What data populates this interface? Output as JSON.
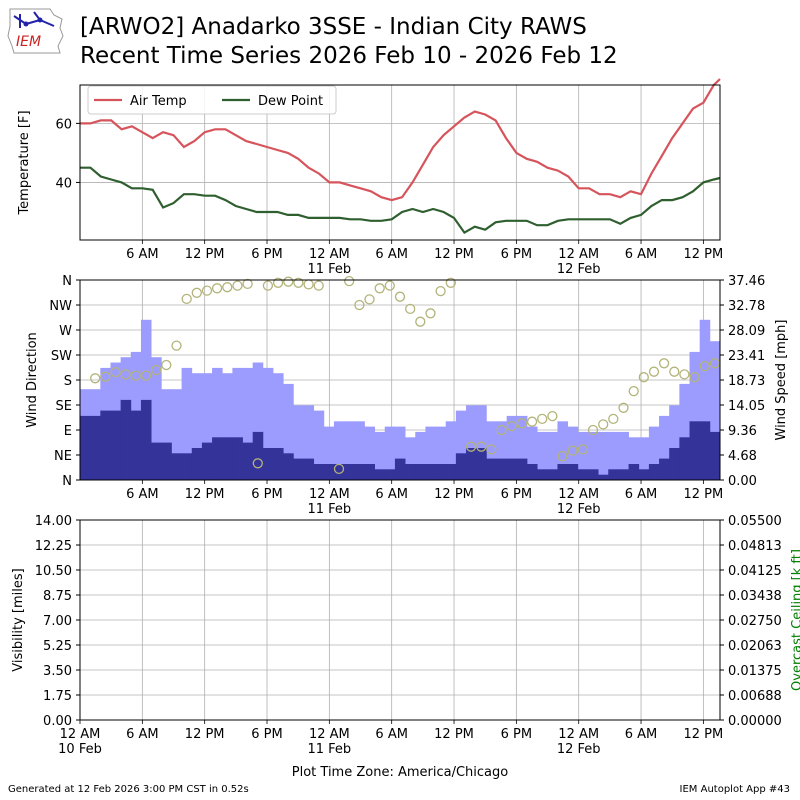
{
  "header": {
    "logo_text": "IEM",
    "title_line1": "[ARWO2] Anadarko 3SSE - Indian City RAWS",
    "title_line2": "Recent Time Series 2026 Feb 10 - 2026 Feb 12"
  },
  "footer": {
    "generated": "Generated at 12 Feb 2026 3:00 PM CST in 0.52s",
    "app": "IEM Autoplot App #43"
  },
  "colors": {
    "air_temp": "#d6545b",
    "dew_point": "#2f5f2f",
    "gust_bar": "#9c9cff",
    "speed_bar": "#333399",
    "direction_marker": "#b3b37a",
    "ceiling_label": "#008000"
  },
  "chart_data": [
    {
      "type": "line",
      "ylabel": "Temperature [F]",
      "yticks": [
        40,
        60
      ],
      "ylim": [
        20.5,
        73
      ],
      "xlim": [
        0,
        61.6
      ],
      "x_ticks": [
        {
          "x": 6,
          "label": "6 AM"
        },
        {
          "x": 12,
          "label": "12 PM"
        },
        {
          "x": 18,
          "label": "6 PM"
        },
        {
          "x": 24,
          "label": "12 AM",
          "sub": "11 Feb"
        },
        {
          "x": 30,
          "label": "6 AM"
        },
        {
          "x": 36,
          "label": "12 PM"
        },
        {
          "x": 42,
          "label": "6 PM"
        },
        {
          "x": 48,
          "label": "12 AM",
          "sub": "12 Feb"
        },
        {
          "x": 54,
          "label": "6 AM"
        },
        {
          "x": 60,
          "label": "12 PM"
        }
      ],
      "legend": [
        "Air Temp",
        "Dew Point"
      ],
      "legend_position": "top-left",
      "grid": true,
      "series": [
        {
          "name": "Air Temp",
          "points": [
            [
              0,
              60
            ],
            [
              1,
              60
            ],
            [
              2,
              61
            ],
            [
              3,
              61
            ],
            [
              4,
              58
            ],
            [
              5,
              59
            ],
            [
              6,
              57
            ],
            [
              7,
              55
            ],
            [
              8,
              57
            ],
            [
              9,
              56
            ],
            [
              10,
              52
            ],
            [
              11,
              54
            ],
            [
              12,
              57
            ],
            [
              13,
              58
            ],
            [
              14,
              58
            ],
            [
              15,
              56
            ],
            [
              16,
              54
            ],
            [
              17,
              53
            ],
            [
              18,
              52
            ],
            [
              19,
              51
            ],
            [
              20,
              50
            ],
            [
              21,
              48
            ],
            [
              22,
              45
            ],
            [
              23,
              43
            ],
            [
              24,
              40
            ],
            [
              25,
              40
            ],
            [
              26,
              39
            ],
            [
              27,
              38
            ],
            [
              28,
              37
            ],
            [
              29,
              35
            ],
            [
              30,
              34
            ],
            [
              31,
              35
            ],
            [
              32,
              40
            ],
            [
              33,
              46
            ],
            [
              34,
              52
            ],
            [
              35,
              56
            ],
            [
              36,
              59
            ],
            [
              37,
              62
            ],
            [
              38,
              64
            ],
            [
              39,
              63
            ],
            [
              40,
              61
            ],
            [
              41,
              55
            ],
            [
              42,
              50
            ],
            [
              43,
              48
            ],
            [
              44,
              47
            ],
            [
              45,
              45
            ],
            [
              46,
              44
            ],
            [
              47,
              42
            ],
            [
              48,
              38
            ],
            [
              49,
              38
            ],
            [
              50,
              36
            ],
            [
              51,
              36
            ],
            [
              52,
              35
            ],
            [
              53,
              37
            ],
            [
              54,
              36
            ],
            [
              55,
              43
            ],
            [
              56,
              49
            ],
            [
              57,
              55
            ],
            [
              58,
              60
            ],
            [
              59,
              65
            ],
            [
              60,
              67
            ],
            [
              61,
              73
            ],
            [
              61.6,
              75
            ]
          ]
        },
        {
          "name": "Dew Point",
          "points": [
            [
              0,
              45
            ],
            [
              1,
              45
            ],
            [
              2,
              42
            ],
            [
              3,
              41
            ],
            [
              4,
              40
            ],
            [
              5,
              38
            ],
            [
              6,
              38
            ],
            [
              7,
              37.5
            ],
            [
              8,
              31.5
            ],
            [
              9,
              33
            ],
            [
              10,
              36
            ],
            [
              11,
              36
            ],
            [
              12,
              35.5
            ],
            [
              13,
              35.5
            ],
            [
              14,
              34
            ],
            [
              15,
              32
            ],
            [
              16,
              31
            ],
            [
              17,
              30
            ],
            [
              18,
              30
            ],
            [
              19,
              30
            ],
            [
              20,
              29
            ],
            [
              21,
              29
            ],
            [
              22,
              28
            ],
            [
              23,
              28
            ],
            [
              24,
              28
            ],
            [
              25,
              28
            ],
            [
              26,
              27.5
            ],
            [
              27,
              27.5
            ],
            [
              28,
              27
            ],
            [
              29,
              27
            ],
            [
              30,
              27.5
            ],
            [
              31,
              30
            ],
            [
              32,
              31
            ],
            [
              33,
              30
            ],
            [
              34,
              31
            ],
            [
              35,
              30
            ],
            [
              36,
              28
            ],
            [
              37,
              23
            ],
            [
              38,
              25
            ],
            [
              39,
              24
            ],
            [
              40,
              26.5
            ],
            [
              41,
              27
            ],
            [
              42,
              27
            ],
            [
              43,
              27
            ],
            [
              44,
              25.5
            ],
            [
              45,
              25.5
            ],
            [
              46,
              27
            ],
            [
              47,
              27.5
            ],
            [
              48,
              27.5
            ],
            [
              49,
              27.5
            ],
            [
              50,
              27.5
            ],
            [
              51,
              27.5
            ],
            [
              52,
              26
            ],
            [
              53,
              28
            ],
            [
              54,
              29
            ],
            [
              55,
              32
            ],
            [
              56,
              34
            ],
            [
              57,
              34
            ],
            [
              58,
              35
            ],
            [
              59,
              37
            ],
            [
              60,
              40
            ],
            [
              61,
              41
            ],
            [
              61.6,
              41.5
            ]
          ]
        }
      ]
    },
    {
      "type": "bar",
      "ylabel": "Wind Direction",
      "y2label": "Wind Speed [mph]",
      "direction_ticks": [
        "N",
        "NE",
        "E",
        "SE",
        "S",
        "SW",
        "W",
        "NW",
        "N"
      ],
      "speed_ticks": [
        "0.00",
        "4.68",
        "9.36",
        "14.05",
        "18.73",
        "23.41",
        "28.09",
        "32.78",
        "37.46"
      ],
      "speed_ylim": [
        0,
        37.46
      ],
      "xlim": [
        0,
        61.6
      ],
      "x_ticks": [
        {
          "x": 6,
          "label": "6 AM"
        },
        {
          "x": 12,
          "label": "12 PM"
        },
        {
          "x": 18,
          "label": "6 PM"
        },
        {
          "x": 24,
          "label": "12 AM",
          "sub": "11 Feb"
        },
        {
          "x": 30,
          "label": "6 AM"
        },
        {
          "x": 36,
          "label": "12 PM"
        },
        {
          "x": 42,
          "label": "6 PM"
        },
        {
          "x": 48,
          "label": "12 AM",
          "sub": "12 Feb"
        },
        {
          "x": 54,
          "label": "6 AM"
        },
        {
          "x": 60,
          "label": "12 PM"
        }
      ],
      "grid": true,
      "gust": [
        17,
        17,
        21,
        22,
        23,
        24,
        30,
        23,
        17,
        17,
        21,
        20,
        20,
        21,
        20,
        21,
        21,
        22,
        21,
        20,
        18,
        14,
        14,
        13,
        10,
        11,
        11,
        11,
        10,
        9,
        10,
        10,
        8,
        9,
        10,
        10,
        11,
        13,
        14,
        14,
        11,
        11,
        12,
        12,
        10,
        9,
        9,
        11,
        10,
        9,
        9,
        9,
        9,
        9,
        8,
        8,
        10,
        12,
        14,
        18,
        24,
        30,
        26
      ],
      "speed": [
        12,
        12,
        13,
        13,
        15,
        13,
        15,
        7,
        7,
        5,
        5,
        6,
        7,
        8,
        8,
        8,
        7,
        9,
        6,
        6,
        5,
        4,
        4,
        3,
        3,
        3,
        3,
        3,
        3,
        2,
        2,
        4,
        3,
        3,
        3,
        3,
        3,
        5,
        6,
        6,
        4,
        4,
        4,
        4,
        3,
        2,
        2,
        3,
        3,
        2,
        2,
        1,
        2,
        2,
        3,
        2,
        3,
        4,
        6,
        8,
        11,
        11,
        9
      ],
      "direction_deg": [
        null,
        183,
        186,
        194,
        190,
        188,
        188,
        198,
        207,
        242,
        326,
        337,
        341,
        345,
        347,
        350,
        353,
        30,
        350,
        355,
        357,
        355,
        352,
        350,
        null,
        20,
        358,
        315,
        325,
        345,
        350,
        330,
        308,
        285,
        300,
        340,
        355,
        null,
        60,
        60,
        55,
        90,
        97,
        102,
        105,
        110,
        115,
        43,
        53,
        55,
        90,
        100,
        110,
        130,
        160,
        185,
        195,
        210,
        195,
        190,
        185,
        205,
        210
      ]
    },
    {
      "type": "line",
      "ylabel": "Visibility [miles]",
      "y2label": "Overcast Ceiling [k ft]",
      "left_ticks": [
        "0.00",
        "1.75",
        "3.50",
        "5.25",
        "7.00",
        "8.75",
        "10.50",
        "12.25",
        "14.00"
      ],
      "right_ticks": [
        "0.00000",
        "0.00688",
        "0.01375",
        "0.02063",
        "0.02750",
        "0.03438",
        "0.04125",
        "0.04813",
        "0.05500"
      ],
      "ylim": [
        0,
        14
      ],
      "y2lim": [
        0,
        0.055
      ],
      "xlim": [
        0,
        61.6
      ],
      "x_ticks": [
        {
          "x": 0,
          "label": "12 AM",
          "sub": "10 Feb"
        },
        {
          "x": 6,
          "label": "6 AM"
        },
        {
          "x": 12,
          "label": "12 PM"
        },
        {
          "x": 18,
          "label": "6 PM"
        },
        {
          "x": 24,
          "label": "12 AM",
          "sub": "11 Feb"
        },
        {
          "x": 30,
          "label": "6 AM"
        },
        {
          "x": 36,
          "label": "12 PM"
        },
        {
          "x": 42,
          "label": "6 PM"
        },
        {
          "x": 48,
          "label": "12 AM",
          "sub": "12 Feb"
        },
        {
          "x": 54,
          "label": "6 AM"
        },
        {
          "x": 60,
          "label": "12 PM"
        }
      ],
      "xlabel": "Plot Time Zone: America/Chicago",
      "grid": true,
      "series": []
    }
  ]
}
